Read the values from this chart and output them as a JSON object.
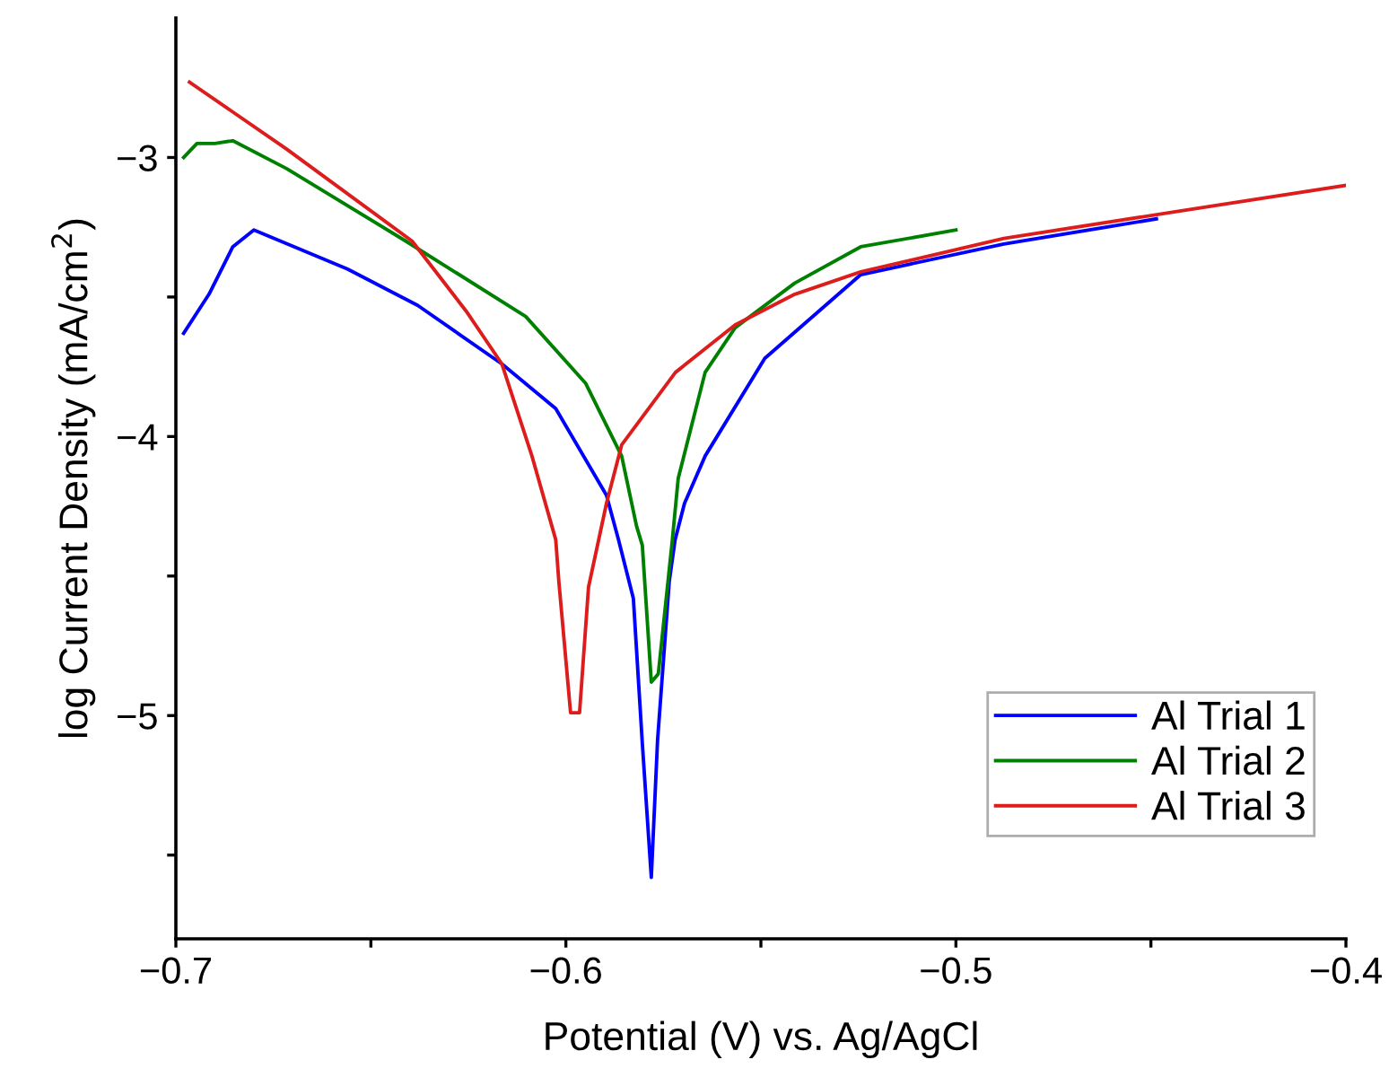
{
  "chart_data": {
    "type": "line",
    "xlabel": "Potential (V) vs. Ag/AgCl",
    "ylabel": "log Current Density (mA/cm$^{2}$)",
    "xlim": [
      -0.7,
      -0.4
    ],
    "ylim": [
      -5.8,
      -2.5
    ],
    "xticks": [
      -0.7,
      {
        "value": -0.65,
        "label": null
      },
      -0.6,
      {
        "value": -0.55,
        "label": null
      },
      -0.5,
      {
        "value": -0.45,
        "label": null
      },
      -0.4
    ],
    "yticks": [
      {
        "value": -5.5,
        "label": null
      },
      -5,
      {
        "value": -4.5,
        "label": null
      },
      -4,
      {
        "value": -3.5,
        "label": null
      },
      -3
    ],
    "legend": "bottom right",
    "grid": false,
    "marker": "none",
    "line_style": "solid",
    "series": [
      {
        "name": "Al Trial 1",
        "color": "#0000ff",
        "x": [
          -0.698,
          -0.6915,
          -0.6854,
          -0.68,
          -0.656,
          -0.638,
          -0.6164,
          -0.6026,
          -0.5896,
          -0.5865,
          -0.5827,
          -0.5804,
          -0.5781,
          -0.5765,
          -0.5735,
          -0.572,
          -0.5696,
          -0.5643,
          -0.549,
          -0.5244,
          -0.4877,
          -0.4486
        ],
        "values": [
          -3.63,
          -3.49,
          -3.32,
          -3.26,
          -3.4,
          -3.53,
          -3.74,
          -3.9,
          -4.21,
          -4.37,
          -4.58,
          -5.1,
          -5.58,
          -5.09,
          -4.52,
          -4.37,
          -4.24,
          -4.07,
          -3.72,
          -3.42,
          -3.31,
          -3.22
        ]
      },
      {
        "name": "Al Trial 2",
        "color": "#008000",
        "x": [
          -0.698,
          -0.6946,
          -0.69,
          -0.6854,
          -0.6716,
          -0.641,
          -0.6103,
          -0.5949,
          -0.5857,
          -0.5819,
          -0.5804,
          -0.5781,
          -0.5763,
          -0.5727,
          -0.5712,
          -0.5643,
          -0.5566,
          -0.5413,
          -0.5244,
          -0.5
        ],
        "values": [
          -3.0,
          -2.95,
          -2.95,
          -2.94,
          -3.04,
          -3.3,
          -3.57,
          -3.81,
          -4.07,
          -4.32,
          -4.39,
          -4.88,
          -4.85,
          -4.37,
          -4.15,
          -3.77,
          -3.61,
          -3.45,
          -3.32,
          -3.26
        ]
      },
      {
        "name": "Al Trial 3",
        "color": "#dd1c1c",
        "x": [
          -0.6965,
          -0.6716,
          -0.6394,
          -0.6256,
          -0.6164,
          -0.6087,
          -0.6026,
          -0.6018,
          -0.5988,
          -0.5965,
          -0.5942,
          -0.5896,
          -0.5857,
          -0.5719,
          -0.5566,
          -0.5413,
          -0.5244,
          -0.4877,
          -0.4463,
          -0.4
        ],
        "values": [
          -2.73,
          -2.97,
          -3.3,
          -3.55,
          -3.74,
          -4.07,
          -4.37,
          -4.52,
          -4.99,
          -4.99,
          -4.54,
          -4.24,
          -4.03,
          -3.77,
          -3.6,
          -3.49,
          -3.41,
          -3.29,
          -3.2,
          -3.1
        ]
      }
    ]
  }
}
